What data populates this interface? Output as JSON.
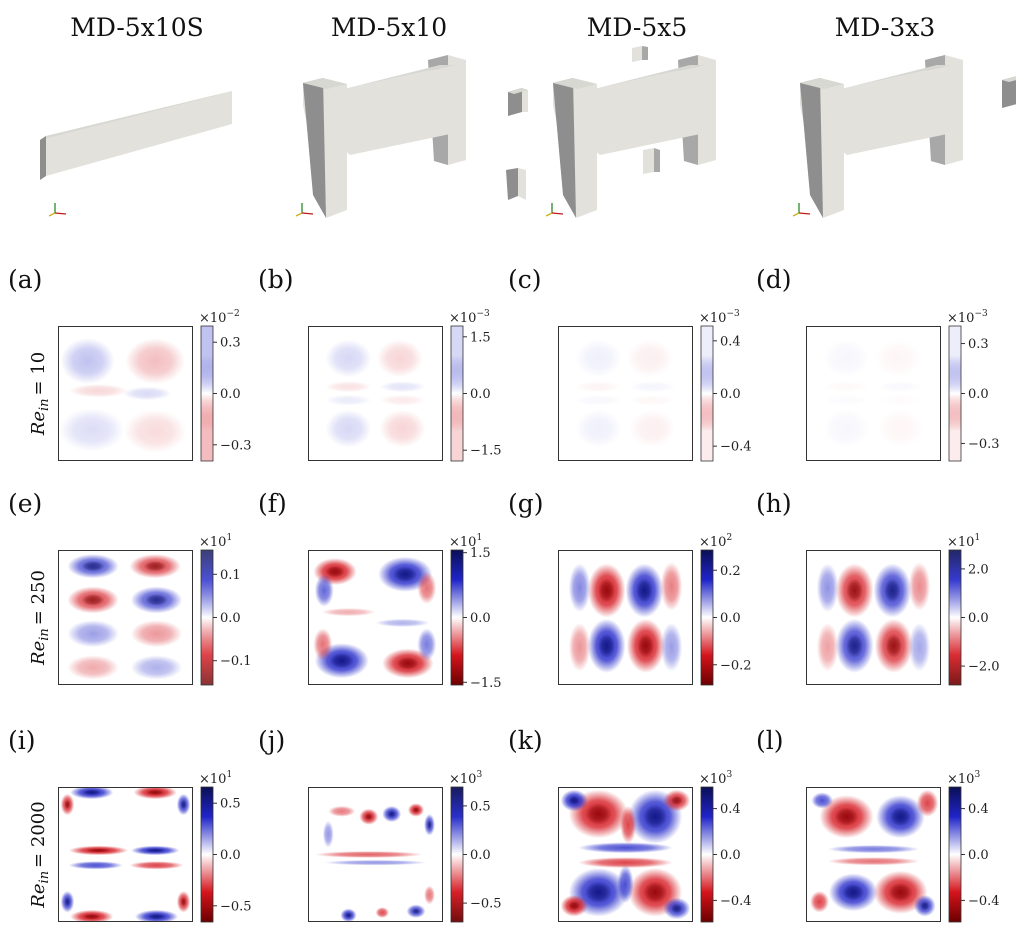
{
  "columns": [
    {
      "title": "MD-5x10S",
      "shape": "bar"
    },
    {
      "title": "MD-5x10",
      "shape": "h"
    },
    {
      "title": "MD-5x5",
      "shape": "h-step"
    },
    {
      "title": "MD-3x3",
      "shape": "h-step2"
    }
  ],
  "rows": [
    {
      "re_symbol": "Re",
      "re_sub": "in",
      "re_value": "= 10"
    },
    {
      "re_symbol": "Re",
      "re_sub": "in",
      "re_value": "= 250"
    },
    {
      "re_symbol": "Re",
      "re_sub": "in",
      "re_value": "= 2000"
    }
  ],
  "panels": [
    {
      "label": "(a)",
      "row": 0,
      "col": 0,
      "base": "×10",
      "power": "−2",
      "ticks": [
        "0.3",
        "0.0",
        "−0.3"
      ],
      "tick_pos": [
        0.88,
        0.5,
        0.12
      ],
      "intensity": 0.28,
      "pattern": "four"
    },
    {
      "label": "(b)",
      "row": 0,
      "col": 1,
      "base": "×10",
      "power": "−3",
      "ticks": [
        "1.5",
        "0.0",
        "−1.5"
      ],
      "tick_pos": [
        0.92,
        0.5,
        0.08
      ],
      "intensity": 0.18,
      "pattern": "quad"
    },
    {
      "label": "(c)",
      "row": 0,
      "col": 2,
      "base": "×10",
      "power": "−3",
      "ticks": [
        "0.4",
        "0.0",
        "−0.4"
      ],
      "tick_pos": [
        0.89,
        0.5,
        0.11
      ],
      "intensity": 0.07,
      "pattern": "quad"
    },
    {
      "label": "(d)",
      "row": 0,
      "col": 3,
      "base": "×10",
      "power": "−3",
      "ticks": [
        "0.3",
        "0.0",
        "−0.3"
      ],
      "tick_pos": [
        0.87,
        0.5,
        0.13
      ],
      "intensity": 0.04,
      "pattern": "quad"
    },
    {
      "label": "(e)",
      "row": 1,
      "col": 0,
      "base": "×10",
      "power": "1",
      "ticks": [
        "0.1",
        "0.0",
        "−0.1"
      ],
      "tick_pos": [
        0.82,
        0.5,
        0.18
      ],
      "intensity": 0.8,
      "pattern": "checker"
    },
    {
      "label": "(f)",
      "row": 1,
      "col": 1,
      "base": "×10",
      "power": "1",
      "ticks": [
        "1.5",
        "0.0",
        "−1.5"
      ],
      "tick_pos": [
        0.98,
        0.5,
        0.02
      ],
      "intensity": 1.0,
      "pattern": "crescents"
    },
    {
      "label": "(g)",
      "row": 1,
      "col": 2,
      "base": "×10",
      "power": "2",
      "ticks": [
        "0.2",
        "0.0",
        "−0.2"
      ],
      "tick_pos": [
        0.85,
        0.5,
        0.15
      ],
      "intensity": 1.0,
      "pattern": "petals"
    },
    {
      "label": "(h)",
      "row": 1,
      "col": 3,
      "base": "×10",
      "power": "1",
      "ticks": [
        "2.0",
        "0.0",
        "−2.0"
      ],
      "tick_pos": [
        0.86,
        0.5,
        0.14
      ],
      "intensity": 0.9,
      "pattern": "petals"
    },
    {
      "label": "(i)",
      "row": 2,
      "col": 0,
      "base": "×10",
      "power": "1",
      "ticks": [
        "0.5",
        "0.0",
        "−0.5"
      ],
      "tick_pos": [
        0.88,
        0.5,
        0.12
      ],
      "intensity": 1.0,
      "pattern": "bands"
    },
    {
      "label": "(j)",
      "row": 2,
      "col": 1,
      "base": "×10",
      "power": "3",
      "ticks": [
        "0.5",
        "0.0",
        "−0.5"
      ],
      "tick_pos": [
        0.86,
        0.5,
        0.14
      ],
      "intensity": 0.95,
      "pattern": "turb_light"
    },
    {
      "label": "(k)",
      "row": 2,
      "col": 2,
      "base": "×10",
      "power": "3",
      "ticks": [
        "0.4",
        "0.0",
        "−0.4"
      ],
      "tick_pos": [
        0.84,
        0.5,
        0.16
      ],
      "intensity": 1.0,
      "pattern": "turb_heavy"
    },
    {
      "label": "(l)",
      "row": 2,
      "col": 3,
      "base": "×10",
      "power": "3",
      "ticks": [
        "0.4",
        "0.0",
        "−0.4"
      ],
      "tick_pos": [
        0.84,
        0.5,
        0.16
      ],
      "intensity": 1.0,
      "pattern": "turb_mid"
    }
  ],
  "colors": {
    "positive": "#1f24c8",
    "negative": "#d4141c",
    "zero": "#ffffff",
    "deep_positive": "#0b0f55",
    "deep_negative": "#6b0000"
  }
}
